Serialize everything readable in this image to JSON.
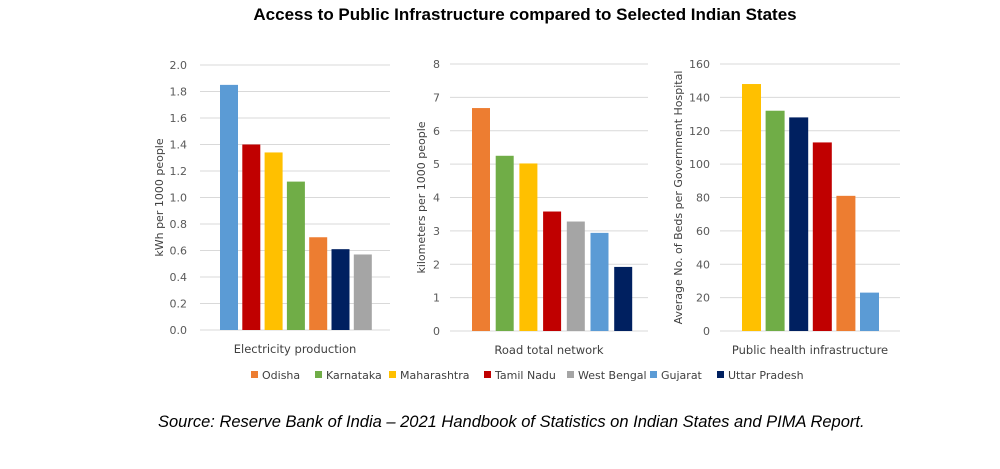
{
  "title": "Access to Public Infrastructure compared to Selected Indian States",
  "source": "Source: Reserve Bank of India – 2021 Handbook of Statistics on Indian States and PIMA Report.",
  "legend": [
    {
      "name": "Odisha",
      "color": "#ED7D31"
    },
    {
      "name": "Karnataka",
      "color": "#70AD47"
    },
    {
      "name": "Maharashtra",
      "color": "#FFC000"
    },
    {
      "name": "Tamil Nadu",
      "color": "#C00000"
    },
    {
      "name": "West Bengal",
      "color": "#A5A5A5"
    },
    {
      "name": "Gujarat",
      "color": "#5B9BD5"
    },
    {
      "name": "Uttar Pradesh",
      "color": "#002060"
    }
  ],
  "chart_data": [
    {
      "type": "bar",
      "xlabel": "Electricity production",
      "ylabel": "kWh per 1000 people",
      "ylim": [
        0,
        2.0
      ],
      "yticks": [
        "0.0",
        "0.2",
        "0.4",
        "0.6",
        "0.8",
        "1.0",
        "1.2",
        "1.4",
        "1.6",
        "1.8",
        "2.0"
      ],
      "grid": true,
      "bars": [
        {
          "series": "Gujarat",
          "value": 1.85
        },
        {
          "series": "Tamil Nadu",
          "value": 1.4
        },
        {
          "series": "Maharashtra",
          "value": 1.34
        },
        {
          "series": "Karnataka",
          "value": 1.12
        },
        {
          "series": "Odisha",
          "value": 0.7
        },
        {
          "series": "Uttar Pradesh",
          "value": 0.61
        },
        {
          "series": "West Bengal",
          "value": 0.57
        }
      ]
    },
    {
      "type": "bar",
      "xlabel": "Road total network",
      "ylabel": "kilometers per 1000 people",
      "ylim": [
        0,
        8
      ],
      "yticks": [
        "0",
        "1",
        "2",
        "3",
        "4",
        "5",
        "6",
        "7",
        "8"
      ],
      "grid": true,
      "bars": [
        {
          "series": "Odisha",
          "value": 6.68
        },
        {
          "series": "Karnataka",
          "value": 5.25
        },
        {
          "series": "Maharashtra",
          "value": 5.02
        },
        {
          "series": "Tamil Nadu",
          "value": 3.58
        },
        {
          "series": "West Bengal",
          "value": 3.28
        },
        {
          "series": "Gujarat",
          "value": 2.94
        },
        {
          "series": "Uttar Pradesh",
          "value": 1.92
        }
      ]
    },
    {
      "type": "bar",
      "xlabel": "Public health infrastructure",
      "ylabel": "Average No. of Beds per Government Hospital",
      "ylim": [
        0,
        160
      ],
      "yticks": [
        "0",
        "20",
        "40",
        "60",
        "80",
        "100",
        "120",
        "140",
        "160"
      ],
      "grid": true,
      "bars": [
        {
          "series": "Maharashtra",
          "value": 148
        },
        {
          "series": "Karnataka",
          "value": 132
        },
        {
          "series": "Uttar Pradesh",
          "value": 128
        },
        {
          "series": "Tamil Nadu",
          "value": 113
        },
        {
          "series": "Odisha",
          "value": 81
        },
        {
          "series": "Gujarat",
          "value": 23
        }
      ]
    }
  ]
}
